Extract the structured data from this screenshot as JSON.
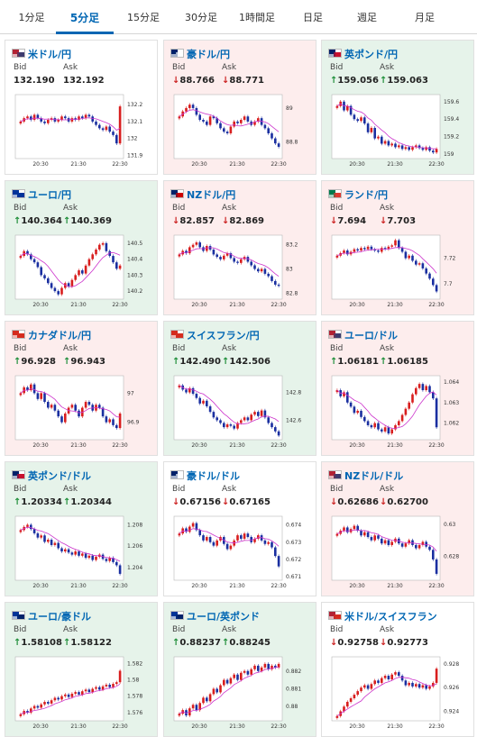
{
  "tabs": [
    {
      "label": "1分足",
      "active": false
    },
    {
      "label": "5分足",
      "active": true
    },
    {
      "label": "15分足",
      "active": false
    },
    {
      "label": "30分足",
      "active": false
    },
    {
      "label": "1時間足",
      "active": false
    },
    {
      "label": "日足",
      "active": false
    },
    {
      "label": "週足",
      "active": false
    },
    {
      "label": "月足",
      "active": false
    }
  ],
  "labels": {
    "bid": "Bid",
    "ask": "Ask"
  },
  "colors": {
    "up": "#1f8f3a",
    "down": "#cc2222",
    "candle_up": "#d81e1e",
    "candle_down": "#1a2fa0",
    "ma": "#cc33cc",
    "link": "#0066b3"
  },
  "cards": [
    {
      "title": "米ドル/円",
      "trend": "neutral",
      "bid_arrow": "",
      "bid": "132.190",
      "ask_arrow": "",
      "ask": "132.192",
      "flag": [
        "#b22234",
        "#3c3b6e"
      ],
      "chart_data": {
        "type": "candlestick",
        "x_ticks": [
          "20:30",
          "21:30",
          "22:30"
        ],
        "y_ticks": [
          "132.2",
          "132.1",
          "132",
          "131.9"
        ],
        "ylim": [
          131.88,
          132.26
        ],
        "closes": [
          132.1,
          132.12,
          132.13,
          132.11,
          132.14,
          132.12,
          132.1,
          132.09,
          132.11,
          132.12,
          132.1,
          132.11,
          132.13,
          132.12,
          132.1,
          132.12,
          132.11,
          132.13,
          132.12,
          132.14,
          132.13,
          132.1,
          132.08,
          132.06,
          132.05,
          132.07,
          132.04,
          132.02,
          131.97,
          132.19
        ]
      }
    },
    {
      "title": "豪ドル/円",
      "trend": "down",
      "bid_arrow": "↓",
      "bid": "88.766",
      "ask_arrow": "↓",
      "ask": "88.771",
      "flag": [
        "#012169",
        "#ffffff"
      ],
      "chart_data": {
        "type": "candlestick",
        "x_ticks": [
          "20:30",
          "21:30",
          "22:30"
        ],
        "y_ticks": [
          "89",
          "88.8"
        ],
        "ylim": [
          88.7,
          89.08
        ],
        "closes": [
          88.95,
          88.98,
          89.0,
          89.02,
          89.0,
          88.96,
          88.93,
          88.92,
          88.9,
          88.95,
          88.94,
          88.91,
          88.88,
          88.86,
          88.85,
          88.89,
          88.92,
          88.91,
          88.93,
          88.95,
          88.92,
          88.9,
          88.92,
          88.94,
          88.9,
          88.88,
          88.85,
          88.82,
          88.79,
          88.77
        ]
      }
    },
    {
      "title": "英ポンド/円",
      "trend": "up",
      "bid_arrow": "↑",
      "bid": "159.056",
      "ask_arrow": "↑",
      "ask": "159.063",
      "flag": [
        "#012169",
        "#c8102e"
      ],
      "chart_data": {
        "type": "candlestick",
        "x_ticks": [
          "20:30",
          "21:30",
          "22:30"
        ],
        "y_ticks": [
          "159.6",
          "159.4",
          "159.2",
          "159"
        ],
        "ylim": [
          158.95,
          159.68
        ],
        "closes": [
          159.55,
          159.6,
          159.5,
          159.55,
          159.45,
          159.4,
          159.38,
          159.42,
          159.35,
          159.25,
          159.3,
          159.18,
          159.2,
          159.12,
          159.15,
          159.1,
          159.12,
          159.08,
          159.1,
          159.06,
          159.08,
          159.05,
          159.08,
          159.1,
          159.07,
          159.05,
          159.08,
          159.04,
          159.02,
          159.06
        ]
      }
    },
    {
      "title": "ユーロ/円",
      "trend": "up",
      "bid_arrow": "↑",
      "bid": "140.364",
      "ask_arrow": "↑",
      "ask": "140.369",
      "flag": [
        "#003399",
        "#003399"
      ],
      "chart_data": {
        "type": "candlestick",
        "x_ticks": [
          "20:30",
          "21:30",
          "22:30"
        ],
        "y_ticks": [
          "140.5",
          "140.4",
          "140.3",
          "140.2"
        ],
        "ylim": [
          140.15,
          140.55
        ],
        "closes": [
          140.42,
          140.45,
          140.43,
          140.4,
          140.38,
          140.35,
          140.3,
          140.28,
          140.25,
          140.22,
          140.2,
          140.18,
          140.22,
          140.25,
          140.23,
          140.27,
          140.3,
          140.33,
          140.31,
          140.36,
          140.4,
          140.43,
          140.46,
          140.49,
          140.5,
          140.45,
          140.42,
          140.38,
          140.34,
          140.36
        ]
      }
    },
    {
      "title": "NZドル/円",
      "trend": "down",
      "bid_arrow": "↓",
      "bid": "82.857",
      "ask_arrow": "↓",
      "ask": "82.869",
      "flag": [
        "#012169",
        "#cc0000"
      ],
      "chart_data": {
        "type": "candlestick",
        "x_ticks": [
          "20:30",
          "21:30",
          "22:30"
        ],
        "y_ticks": [
          "83.2",
          "83",
          "82.8"
        ],
        "ylim": [
          82.75,
          83.28
        ],
        "closes": [
          83.12,
          83.15,
          83.13,
          83.18,
          83.2,
          83.22,
          83.18,
          83.15,
          83.19,
          83.16,
          83.12,
          83.1,
          83.08,
          83.11,
          83.13,
          83.09,
          83.06,
          83.05,
          83.08,
          83.1,
          83.06,
          83.03,
          83.0,
          82.98,
          83.0,
          82.96,
          82.94,
          82.9,
          82.87,
          82.86
        ]
      }
    },
    {
      "title": "ランド/円",
      "trend": "down",
      "bid_arrow": "↓",
      "bid": "7.694",
      "ask_arrow": "↓",
      "ask": "7.703",
      "flag": [
        "#007a4d",
        "#de3831"
      ],
      "chart_data": {
        "type": "candlestick",
        "x_ticks": [
          "20:30",
          "21:30",
          "22:30"
        ],
        "y_ticks": [
          "7.72",
          "7.7"
        ],
        "ylim": [
          7.688,
          7.738
        ],
        "closes": [
          7.722,
          7.724,
          7.726,
          7.723,
          7.725,
          7.727,
          7.726,
          7.728,
          7.727,
          7.729,
          7.727,
          7.726,
          7.725,
          7.728,
          7.727,
          7.729,
          7.73,
          7.734,
          7.728,
          7.725,
          7.72,
          7.722,
          7.718,
          7.715,
          7.716,
          7.712,
          7.708,
          7.704,
          7.699,
          7.694
        ]
      }
    },
    {
      "title": "カナダドル/円",
      "trend": "down",
      "bid_arrow": "↑",
      "bid": "96.928",
      "ask_arrow": "↑",
      "ask": "96.943",
      "flag": [
        "#d52b1e",
        "#d52b1e"
      ],
      "chart_data": {
        "type": "candlestick",
        "x_ticks": [
          "20:30",
          "21:30",
          "22:30"
        ],
        "y_ticks": [
          "97",
          "96.9"
        ],
        "ylim": [
          96.84,
          97.06
        ],
        "closes": [
          97.0,
          97.02,
          97.01,
          97.03,
          97.0,
          96.98,
          97.0,
          96.97,
          96.95,
          96.96,
          96.94,
          96.92,
          96.9,
          96.93,
          96.95,
          96.96,
          96.94,
          96.92,
          96.95,
          96.97,
          96.96,
          96.94,
          96.96,
          96.95,
          96.92,
          96.9,
          96.91,
          96.89,
          96.88,
          96.93
        ]
      }
    },
    {
      "title": "スイスフラン/円",
      "trend": "up",
      "bid_arrow": "↑",
      "bid": "142.490",
      "ask_arrow": "↑",
      "ask": "142.506",
      "flag": [
        "#d52b1e",
        "#d52b1e"
      ],
      "chart_data": {
        "type": "candlestick",
        "x_ticks": [
          "20:30",
          "21:30",
          "22:30"
        ],
        "y_ticks": [
          "142.8",
          "142.6"
        ],
        "ylim": [
          142.46,
          142.92
        ],
        "closes": [
          142.85,
          142.82,
          142.8,
          142.83,
          142.79,
          142.76,
          142.72,
          142.74,
          142.7,
          142.66,
          142.62,
          142.6,
          142.58,
          142.55,
          142.57,
          142.56,
          142.54,
          142.58,
          142.6,
          142.62,
          142.6,
          142.64,
          142.66,
          142.63,
          142.67,
          142.62,
          142.58,
          142.55,
          142.52,
          142.49
        ]
      }
    },
    {
      "title": "ユーロ/ドル",
      "trend": "down",
      "bid_arrow": "↑",
      "bid": "1.06181",
      "ask_arrow": "↑",
      "ask": "1.06185",
      "flag": [
        "#b22234",
        "#3c3b6e"
      ],
      "chart_data": {
        "type": "candlestick",
        "x_ticks": [
          "20:30",
          "21:30",
          "22:30"
        ],
        "y_ticks": [
          "1.064",
          "1.063",
          "1.062"
        ],
        "ylim": [
          1.0612,
          1.0643
        ],
        "closes": [
          1.0636,
          1.0633,
          1.0635,
          1.063,
          1.0628,
          1.0625,
          1.0626,
          1.0623,
          1.0621,
          1.0619,
          1.0618,
          1.062,
          1.0617,
          1.0616,
          1.0618,
          1.0615,
          1.0617,
          1.0619,
          1.0621,
          1.0624,
          1.0627,
          1.063,
          1.0634,
          1.0637,
          1.0639,
          1.0636,
          1.0638,
          1.0635,
          1.0632,
          1.0618
        ]
      }
    },
    {
      "title": "英ポンド/ドル",
      "trend": "up",
      "bid_arrow": "↑",
      "bid": "1.20334",
      "ask_arrow": "↑",
      "ask": "1.20344",
      "flag": [
        "#012169",
        "#c8102e"
      ],
      "chart_data": {
        "type": "candlestick",
        "x_ticks": [
          "20:30",
          "21:30",
          "22:30"
        ],
        "y_ticks": [
          "1.208",
          "1.206",
          "1.204"
        ],
        "ylim": [
          1.2028,
          1.2088
        ],
        "closes": [
          1.2075,
          1.2078,
          1.208,
          1.2076,
          1.2072,
          1.2068,
          1.207,
          1.2064,
          1.2066,
          1.2061,
          1.2063,
          1.2058,
          1.2055,
          1.2057,
          1.2054,
          1.2052,
          1.2055,
          1.2051,
          1.2053,
          1.2049,
          1.2051,
          1.2047,
          1.205,
          1.2052,
          1.2048,
          1.2046,
          1.2049,
          1.2045,
          1.2042,
          1.2034
        ]
      }
    },
    {
      "title": "豪ドル/ドル",
      "trend": "neutral",
      "bid_arrow": "↓",
      "bid": "0.67156",
      "ask_arrow": "↓",
      "ask": "0.67165",
      "flag": [
        "#012169",
        "#ffffff"
      ],
      "chart_data": {
        "type": "candlestick",
        "x_ticks": [
          "20:30",
          "21:30",
          "22:30"
        ],
        "y_ticks": [
          "0.674",
          "0.673",
          "0.672",
          "0.671"
        ],
        "ylim": [
          0.6708,
          0.6745
        ],
        "closes": [
          0.6735,
          0.6738,
          0.6736,
          0.6739,
          0.6741,
          0.6737,
          0.6734,
          0.6731,
          0.6733,
          0.673,
          0.6728,
          0.6731,
          0.6733,
          0.6729,
          0.6726,
          0.6728,
          0.6731,
          0.6734,
          0.6732,
          0.6735,
          0.6733,
          0.673,
          0.6732,
          0.6734,
          0.6731,
          0.6729,
          0.673,
          0.6727,
          0.6722,
          0.6716
        ]
      }
    },
    {
      "title": "NZドル/ドル",
      "trend": "down",
      "bid_arrow": "↓",
      "bid": "0.62686",
      "ask_arrow": "↓",
      "ask": "0.62700",
      "flag": [
        "#b22234",
        "#3c3b6e"
      ],
      "chart_data": {
        "type": "candlestick",
        "x_ticks": [
          "20:30",
          "21:30",
          "22:30"
        ],
        "y_ticks": [
          "0.63",
          "0.628"
        ],
        "ylim": [
          0.6265,
          0.6305
        ],
        "closes": [
          0.6294,
          0.6296,
          0.6298,
          0.6295,
          0.6297,
          0.6299,
          0.6296,
          0.6293,
          0.6295,
          0.6292,
          0.629,
          0.6293,
          0.6291,
          0.6288,
          0.629,
          0.6287,
          0.6289,
          0.6291,
          0.6288,
          0.6286,
          0.6288,
          0.629,
          0.6287,
          0.6285,
          0.6287,
          0.6289,
          0.6286,
          0.6284,
          0.6278,
          0.6269
        ]
      }
    },
    {
      "title": "ユーロ/豪ドル",
      "trend": "up",
      "bid_arrow": "↑",
      "bid": "1.58108",
      "ask_arrow": "↑",
      "ask": "1.58122",
      "flag": [
        "#003399",
        "#012169"
      ],
      "chart_data": {
        "type": "candlestick",
        "x_ticks": [
          "20:30",
          "21:30",
          "22:30"
        ],
        "y_ticks": [
          "1.582",
          "1.58",
          "1.578",
          "1.576"
        ],
        "ylim": [
          1.575,
          1.5828
        ],
        "closes": [
          1.5758,
          1.5762,
          1.576,
          1.5765,
          1.5768,
          1.5766,
          1.577,
          1.5773,
          1.5771,
          1.5775,
          1.5778,
          1.5776,
          1.578,
          1.5782,
          1.5779,
          1.5783,
          1.5785,
          1.5782,
          1.5786,
          1.5788,
          1.5785,
          1.5789,
          1.5791,
          1.5788,
          1.5792,
          1.5794,
          1.5791,
          1.5795,
          1.5797,
          1.5811
        ]
      }
    },
    {
      "title": "ユーロ/英ポンド",
      "trend": "up",
      "bid_arrow": "↑",
      "bid": "0.88237",
      "ask_arrow": "↑",
      "ask": "0.88245",
      "flag": [
        "#003399",
        "#012169"
      ],
      "chart_data": {
        "type": "candlestick",
        "x_ticks": [
          "20:30",
          "21:30",
          "22:30"
        ],
        "y_ticks": [
          "0.882",
          "0.881",
          "0.88"
        ],
        "ylim": [
          0.8792,
          0.8828
        ],
        "closes": [
          0.8796,
          0.8798,
          0.8795,
          0.8799,
          0.8801,
          0.8798,
          0.8802,
          0.8805,
          0.8803,
          0.8807,
          0.881,
          0.8808,
          0.8812,
          0.8815,
          0.8813,
          0.8816,
          0.8818,
          0.8815,
          0.8819,
          0.882,
          0.8818,
          0.8821,
          0.8823,
          0.882,
          0.8822,
          0.8824,
          0.8821,
          0.8823,
          0.8822,
          0.8824
        ]
      }
    },
    {
      "title": "米ドル/スイスフラン",
      "trend": "neutral",
      "bid_arrow": "↓",
      "bid": "0.92758",
      "ask_arrow": "↓",
      "ask": "0.92773",
      "flag": [
        "#b22234",
        "#d52b1e"
      ],
      "chart_data": {
        "type": "candlestick",
        "x_ticks": [
          "20:30",
          "21:30",
          "22:30"
        ],
        "y_ticks": [
          "0.928",
          "0.926",
          "0.924"
        ],
        "ylim": [
          0.9232,
          0.9286
        ],
        "closes": [
          0.9236,
          0.924,
          0.9244,
          0.9248,
          0.9251,
          0.9254,
          0.9257,
          0.926,
          0.9262,
          0.9259,
          0.9263,
          0.9266,
          0.9264,
          0.9268,
          0.927,
          0.9267,
          0.9271,
          0.9273,
          0.927,
          0.9266,
          0.9262,
          0.9264,
          0.9261,
          0.9263,
          0.926,
          0.9262,
          0.9259,
          0.9261,
          0.9264,
          0.9276
        ]
      }
    }
  ]
}
